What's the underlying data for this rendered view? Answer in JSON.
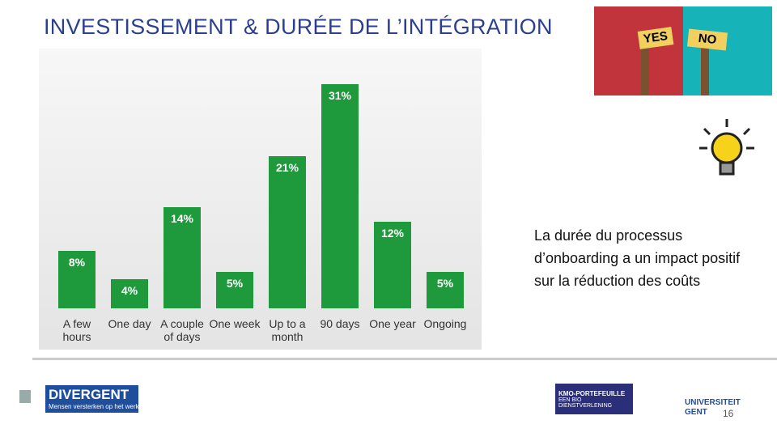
{
  "slide": {
    "title": "INVESTISSEMENT & DURÉE DE L’INTÉGRATION",
    "sign_yes": "YES",
    "sign_no": "NO",
    "body": "La durée du processus d’onboarding a un impact positif sur la réduction des coûts",
    "logo_divergent": "DIVERGENT",
    "logo_divergent_tagline": "Mensen versterken op het werk!",
    "logo_kmo": "KMO-PORTEFEUILLE",
    "logo_kmo_sub": "EEN BIO DIENSTVERLENING",
    "logo_ugent_1": "UNIVERSITEIT",
    "logo_ugent_2": "GENT",
    "page_number": "16"
  },
  "chart_data": {
    "type": "bar",
    "categories": [
      "A few hours",
      "One day",
      "A couple of days",
      "One week",
      "Up to a month",
      "90 days",
      "One year",
      "Ongoing"
    ],
    "values": [
      8,
      4,
      14,
      5,
      21,
      31,
      12,
      5
    ],
    "value_labels": [
      "8%",
      "4%",
      "14%",
      "5%",
      "21%",
      "31%",
      "12%",
      "5%"
    ],
    "color": "#1e9a3c"
  }
}
